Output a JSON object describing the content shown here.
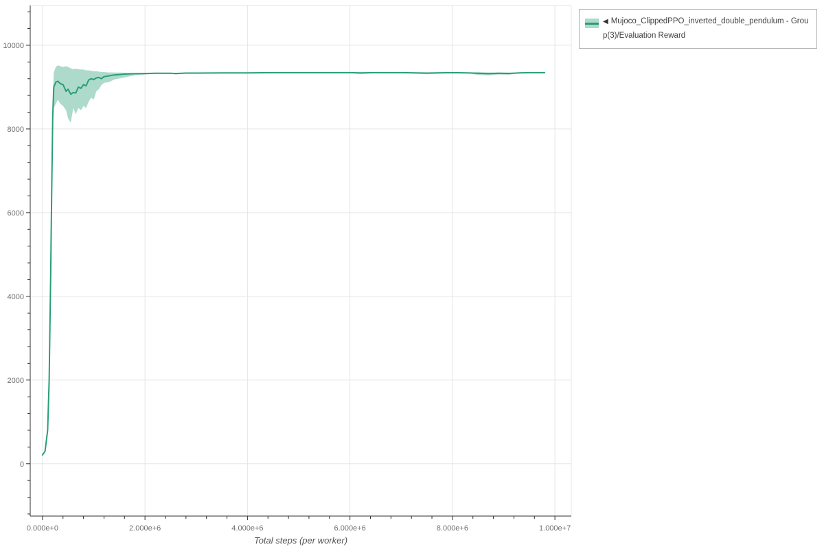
{
  "colors": {
    "line": "#289e75",
    "band": "rgba(40,158,117,0.38)",
    "grid": "#e5e5e5",
    "axis": "#2f2f2f",
    "tick_label": "#6f6f6f",
    "axis_label": "#555555",
    "legend_border": "#b3b3b3",
    "legend_text": "#3f3f3f",
    "background": "#ffffff"
  },
  "legend": {
    "marker": "◀",
    "label": "Mujoco_ClippedPPO_inverted_double_pendulum - Group(3)/Evaluation Reward"
  },
  "chart_data": {
    "type": "line",
    "title": "",
    "xlabel": "Total steps (per worker)",
    "ylabel": "",
    "grid": true,
    "legend_position": "top-right-outside",
    "xlim": [
      -240000,
      10320000
    ],
    "ylim": [
      -1250,
      10950
    ],
    "x_ticks": [
      0,
      2000000,
      4000000,
      6000000,
      8000000,
      10000000
    ],
    "x_tick_labels": [
      "0.000e+0",
      "2.000e+6",
      "4.000e+6",
      "6.000e+6",
      "8.000e+6",
      "1.000e+7"
    ],
    "y_ticks": [
      0,
      2000,
      4000,
      6000,
      8000,
      10000
    ],
    "y_tick_labels": [
      "0",
      "2000",
      "4000",
      "6000",
      "8000",
      "10000"
    ],
    "series": [
      {
        "name": "Mujoco_ClippedPPO_inverted_double_pendulum - Group(3)/Evaluation Reward",
        "line_color": "#289e75",
        "band_color": "rgba(40,158,117,0.38)",
        "x": [
          0,
          50000,
          100000,
          130000,
          160000,
          180000,
          200000,
          220000,
          260000,
          300000,
          350000,
          400000,
          460000,
          500000,
          550000,
          600000,
          650000,
          700000,
          750000,
          800000,
          850000,
          900000,
          950000,
          1000000,
          1050000,
          1100000,
          1150000,
          1200000,
          1300000,
          1400000,
          1600000,
          1800000,
          2000000,
          2200000,
          2500000,
          2600000,
          2800000,
          3000000,
          3500000,
          4000000,
          4500000,
          5000000,
          5500000,
          6000000,
          6200000,
          6500000,
          7000000,
          7500000,
          8000000,
          8300000,
          8500000,
          8700000,
          8900000,
          9100000,
          9300000,
          9500000,
          9800000
        ],
        "mean": [
          210,
          300,
          800,
          2000,
          4500,
          6500,
          8300,
          9000,
          9120,
          9140,
          9080,
          9060,
          8900,
          8950,
          8830,
          8870,
          8860,
          9000,
          8970,
          9060,
          9030,
          9170,
          9200,
          9180,
          9220,
          9230,
          9200,
          9250,
          9270,
          9290,
          9310,
          9320,
          9325,
          9330,
          9330,
          9325,
          9335,
          9335,
          9340,
          9340,
          9345,
          9345,
          9345,
          9345,
          9340,
          9345,
          9345,
          9335,
          9345,
          9340,
          9330,
          9320,
          9330,
          9325,
          9340,
          9345,
          9345
        ],
        "band_lower": [
          200,
          280,
          750,
          1900,
          4300,
          6200,
          7900,
          8500,
          8600,
          8700,
          8600,
          8550,
          8450,
          8250,
          8150,
          8500,
          8350,
          8500,
          8450,
          8550,
          8500,
          8650,
          8750,
          8700,
          8900,
          8950,
          9050,
          9100,
          9120,
          9180,
          9230,
          9280,
          9300,
          9315,
          9320,
          9300,
          9325,
          9330,
          9335,
          9335,
          9340,
          9340,
          9340,
          9340,
          9310,
          9340,
          9340,
          9305,
          9340,
          9330,
          9290,
          9280,
          9300,
          9295,
          9330,
          9340,
          9340
        ],
        "band_upper": [
          220,
          320,
          850,
          2100,
          4700,
          6800,
          8700,
          9350,
          9480,
          9520,
          9500,
          9480,
          9500,
          9480,
          9450,
          9430,
          9440,
          9430,
          9420,
          9420,
          9400,
          9400,
          9390,
          9380,
          9380,
          9370,
          9360,
          9360,
          9350,
          9350,
          9345,
          9340,
          9340,
          9340,
          9340,
          9340,
          9340,
          9340,
          9345,
          9345,
          9350,
          9350,
          9350,
          9350,
          9350,
          9350,
          9350,
          9345,
          9350,
          9345,
          9355,
          9350,
          9350,
          9350,
          9345,
          9350,
          9350
        ]
      }
    ]
  }
}
